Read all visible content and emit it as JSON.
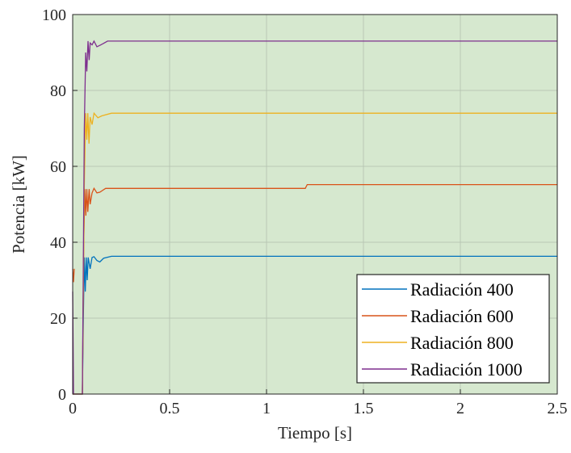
{
  "chart_data": {
    "type": "line",
    "title": "",
    "xlabel": "Tiempo [s]",
    "ylabel": "Potencia [kW]",
    "xlim": [
      0,
      2.5
    ],
    "ylim": [
      0,
      100
    ],
    "xticks": [
      0,
      0.5,
      1,
      1.5,
      2,
      2.5
    ],
    "xtick_labels": [
      "0",
      "0.5",
      "1",
      "1.5",
      "2",
      "2.5"
    ],
    "yticks": [
      0,
      20,
      40,
      60,
      80,
      100
    ],
    "ytick_labels": [
      "0",
      "20",
      "40",
      "60",
      "80",
      "100"
    ],
    "grid": true,
    "legend_position": "bottom-right",
    "plot_background": "#d6e8cf",
    "series": [
      {
        "name": "Radiación 400",
        "color": "#0072bd",
        "points": [
          [
            0,
            0
          ],
          [
            0.05,
            0
          ],
          [
            0.055,
            20
          ],
          [
            0.06,
            36
          ],
          [
            0.065,
            27
          ],
          [
            0.07,
            36
          ],
          [
            0.075,
            30
          ],
          [
            0.08,
            36
          ],
          [
            0.09,
            33
          ],
          [
            0.1,
            36
          ],
          [
            0.11,
            36.2
          ],
          [
            0.125,
            35.2
          ],
          [
            0.14,
            34.8
          ],
          [
            0.16,
            35.8
          ],
          [
            0.2,
            36.3
          ],
          [
            2.5,
            36.3
          ]
        ]
      },
      {
        "name": "Radiación 600",
        "color": "#d95319",
        "points": [
          [
            0,
            0
          ],
          [
            0.05,
            0
          ],
          [
            0.057,
            40
          ],
          [
            0.063,
            54
          ],
          [
            0.068,
            47
          ],
          [
            0.073,
            54
          ],
          [
            0.078,
            48
          ],
          [
            0.085,
            54
          ],
          [
            0.09,
            50
          ],
          [
            0.1,
            53
          ],
          [
            0.11,
            54.2
          ],
          [
            0.125,
            53
          ],
          [
            0.14,
            53.2
          ],
          [
            0.17,
            54.2
          ],
          [
            1.2,
            54.2
          ],
          [
            1.21,
            55.2
          ],
          [
            2.5,
            55.2
          ]
        ]
      },
      {
        "name": "Radiación 800",
        "color": "#edb120",
        "points": [
          [
            0,
            0
          ],
          [
            0.05,
            0
          ],
          [
            0.06,
            55
          ],
          [
            0.067,
            74
          ],
          [
            0.073,
            67
          ],
          [
            0.078,
            74
          ],
          [
            0.084,
            66
          ],
          [
            0.09,
            73
          ],
          [
            0.1,
            71
          ],
          [
            0.11,
            74
          ],
          [
            0.13,
            72.8
          ],
          [
            0.15,
            73.3
          ],
          [
            0.2,
            74
          ],
          [
            2.5,
            74
          ]
        ]
      },
      {
        "name": "Radiación 1000",
        "color": "#7e2f8e",
        "points": [
          [
            0,
            0
          ],
          [
            0.05,
            0
          ],
          [
            0.06,
            70
          ],
          [
            0.067,
            90
          ],
          [
            0.073,
            85
          ],
          [
            0.079,
            93
          ],
          [
            0.085,
            88
          ],
          [
            0.09,
            92.5
          ],
          [
            0.1,
            92
          ],
          [
            0.11,
            93
          ],
          [
            0.125,
            91.5
          ],
          [
            0.145,
            92
          ],
          [
            0.18,
            93
          ],
          [
            2.5,
            93
          ]
        ]
      }
    ],
    "early_transient": [
      {
        "color": "#d95319",
        "points": [
          [
            0,
            33
          ],
          [
            0.004,
            29.5
          ],
          [
            0.008,
            33
          ]
        ]
      },
      {
        "color": "#7e2f8e",
        "points": [
          [
            0,
            27
          ],
          [
            0.004,
            0
          ],
          [
            0.007,
            0
          ]
        ]
      }
    ]
  }
}
